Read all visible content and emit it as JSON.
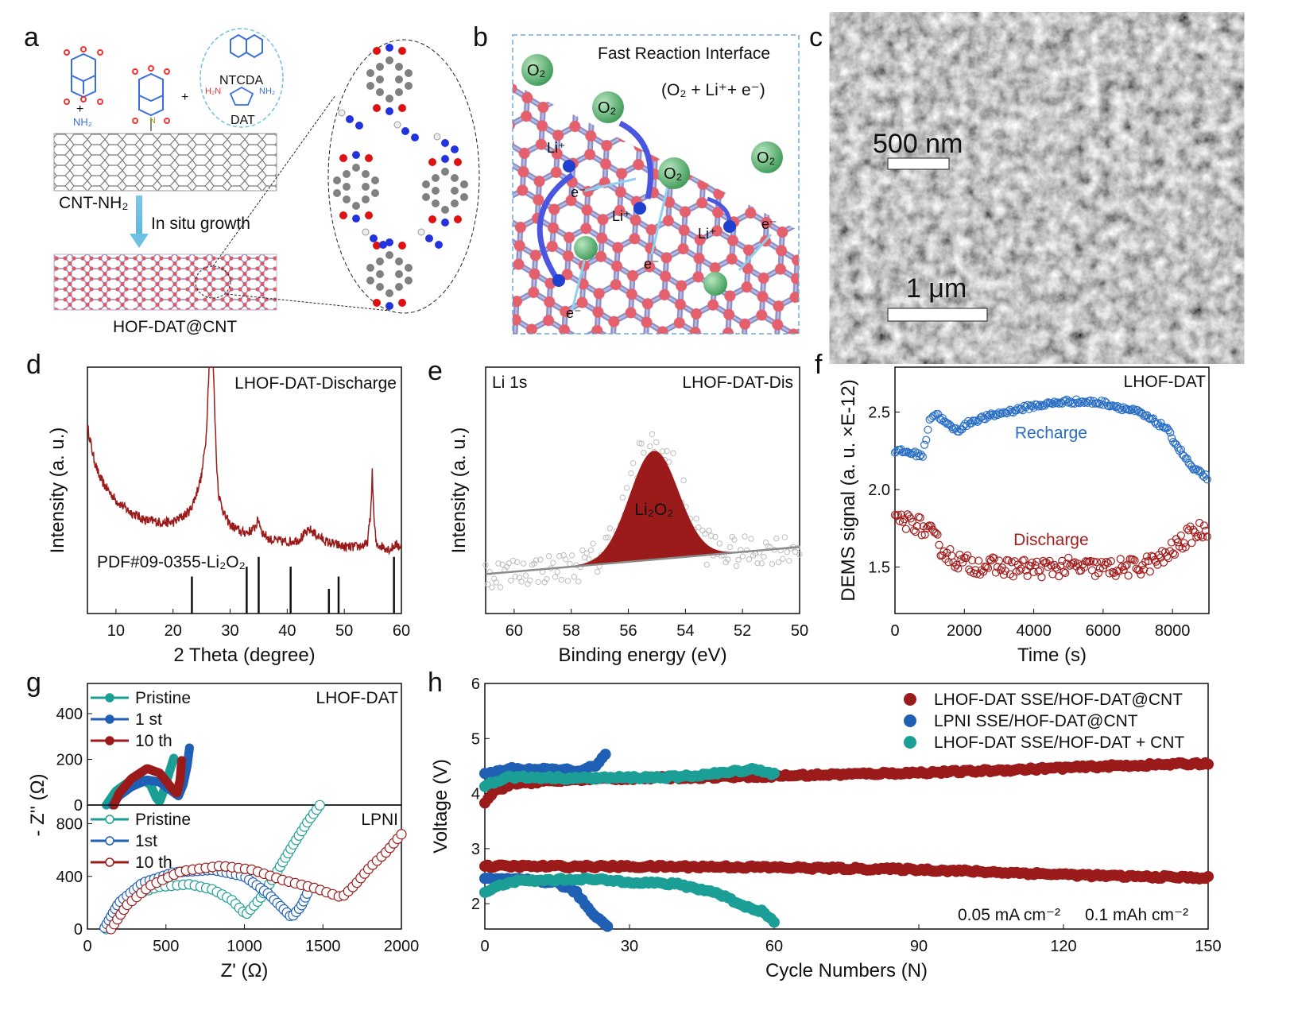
{
  "panel_letters": {
    "a": "a",
    "b": "b",
    "c": "c",
    "d": "d",
    "e": "e",
    "f": "f",
    "g": "g",
    "h": "h"
  },
  "panel_a": {
    "nh2": "NH₂",
    "plus1": "+",
    "plus2": "+",
    "ntcda": "NTCDA",
    "dat": "DAT",
    "h2n": "H₂N",
    "nh2_right": "NH₂",
    "cnt_label": "CNT-NH₂",
    "arrow_label": "In situ growth",
    "hof_label": "HOF-DAT@CNT"
  },
  "panel_b": {
    "title": "Fast Reaction Interface",
    "reaction": "(O₂ + Li⁺+ e⁻)",
    "o2": "O₂",
    "li": "Li⁺",
    "e": "e⁻"
  },
  "panel_c": {
    "inset_scale": "500 nm",
    "main_scale": "1 μm"
  },
  "chart_data": [
    {
      "panel": "d",
      "type": "line",
      "xlabel": "2 Theta (degree)",
      "ylabel": "Intensity (a. u.)",
      "xlim": [
        5,
        60
      ],
      "ylim": [
        0,
        100
      ],
      "xticks": [
        "10",
        "20",
        "30",
        "40",
        "50",
        "60"
      ],
      "annotation": "LHOF-DAT-Discharge",
      "reference_label": "PDF#09-0355-Li₂O₂",
      "series": [
        {
          "name": "LHOF-DAT-Discharge",
          "color": "#9b1b1b",
          "points": [
            [
              5,
              76
            ],
            [
              6,
              64
            ],
            [
              7,
              56
            ],
            [
              8,
              52
            ],
            [
              10,
              46
            ],
            [
              12,
              42
            ],
            [
              15,
              38
            ],
            [
              18,
              37
            ],
            [
              20,
              37
            ],
            [
              22,
              40
            ],
            [
              23,
              42
            ],
            [
              24,
              48
            ],
            [
              25,
              56
            ],
            [
              25.8,
              72
            ],
            [
              26.3,
              100
            ],
            [
              26.8,
              118
            ],
            [
              27.2,
              90
            ],
            [
              27.6,
              62
            ],
            [
              28,
              48
            ],
            [
              29,
              40
            ],
            [
              30,
              36
            ],
            [
              32,
              33
            ],
            [
              33,
              33
            ],
            [
              34,
              34
            ],
            [
              35,
              38
            ],
            [
              35.6,
              33
            ],
            [
              37,
              30
            ],
            [
              40,
              29
            ],
            [
              42,
              30
            ],
            [
              44,
              34
            ],
            [
              45,
              32
            ],
            [
              47,
              29
            ],
            [
              50,
              27
            ],
            [
              52,
              27
            ],
            [
              54,
              28
            ],
            [
              54.6,
              40
            ],
            [
              54.9,
              57
            ],
            [
              55.2,
              38
            ],
            [
              55.6,
              28
            ],
            [
              57,
              27
            ],
            [
              58,
              26
            ],
            [
              59,
              28
            ],
            [
              60,
              27
            ]
          ]
        }
      ],
      "reference_sticks": [
        [
          23.3,
          15
        ],
        [
          32.9,
          19
        ],
        [
          35.0,
          23
        ],
        [
          40.6,
          19
        ],
        [
          47.3,
          10
        ],
        [
          49.0,
          15
        ],
        [
          58.7,
          23
        ]
      ]
    },
    {
      "panel": "e",
      "type": "scatter",
      "xlabel": "Binding energy (eV)",
      "ylabel": "Intensity (a. u.)",
      "xlim": [
        61,
        50
      ],
      "ylim": [
        0,
        100
      ],
      "xticks": [
        "60",
        "58",
        "56",
        "54",
        "52",
        "50"
      ],
      "annotation_left": "Li 1s",
      "annotation_right": "LHOF-DAT-Dis",
      "peak_label": "Li₂O₂",
      "fit": {
        "center": 55.1,
        "sigma": 0.85,
        "amplitude": 44,
        "baseline_start": [
          61,
          16
        ],
        "baseline_end": [
          50,
          27
        ],
        "color": "#9b1b1b"
      },
      "raw_points_count": 150
    },
    {
      "panel": "f",
      "type": "scatter",
      "xlabel": "Time (s)",
      "ylabel": "DEMS signal (a. u. ×E-12)",
      "xlim": [
        0,
        9050
      ],
      "ylim": [
        1.2,
        2.79
      ],
      "xticks": [
        "0",
        "2000",
        "4000",
        "6000",
        "8000"
      ],
      "yticks": [
        "1.5",
        "2.0",
        "2.5"
      ],
      "annotation": "LHOF-DAT",
      "series": [
        {
          "name": "Recharge",
          "color": "#2a6fc4",
          "points": [
            [
              0,
              2.25
            ],
            [
              400,
              2.24
            ],
            [
              800,
              2.22
            ],
            [
              900,
              2.33
            ],
            [
              1000,
              2.46
            ],
            [
              1200,
              2.49
            ],
            [
              1500,
              2.42
            ],
            [
              1800,
              2.38
            ],
            [
              2200,
              2.44
            ],
            [
              3000,
              2.49
            ],
            [
              4000,
              2.54
            ],
            [
              5000,
              2.57
            ],
            [
              6000,
              2.56
            ],
            [
              7000,
              2.5
            ],
            [
              7800,
              2.4
            ],
            [
              8200,
              2.26
            ],
            [
              8600,
              2.13
            ],
            [
              9000,
              2.08
            ]
          ]
        },
        {
          "name": "Discharge",
          "color": "#a31d1d",
          "points": [
            [
              0,
              1.78
            ],
            [
              500,
              1.8
            ],
            [
              1000,
              1.72
            ],
            [
              1500,
              1.58
            ],
            [
              2000,
              1.52
            ],
            [
              3000,
              1.5
            ],
            [
              4000,
              1.49
            ],
            [
              5000,
              1.5
            ],
            [
              6000,
              1.49
            ],
            [
              7000,
              1.5
            ],
            [
              7700,
              1.55
            ],
            [
              8200,
              1.65
            ],
            [
              8600,
              1.72
            ],
            [
              9000,
              1.75
            ]
          ]
        }
      ]
    },
    {
      "panel": "g-top",
      "type": "line",
      "xlabel": "Z' (Ω)",
      "ylabel": "- Z'' (Ω)",
      "xlim": [
        0,
        2000
      ],
      "ylim": [
        0,
        532
      ],
      "yticks": [
        "0",
        "200",
        "400"
      ],
      "annotation": "LHOF-DAT",
      "series": [
        {
          "name": "Pristine",
          "color": "#1a9e96",
          "marker": "filled",
          "points": [
            [
              120,
              0
            ],
            [
              180,
              60
            ],
            [
              260,
              100
            ],
            [
              340,
              115
            ],
            [
              400,
              90
            ],
            [
              440,
              30
            ],
            [
              460,
              15
            ],
            [
              490,
              70
            ],
            [
              520,
              140
            ],
            [
              550,
              205
            ]
          ]
        },
        {
          "name": "1 st",
          "color": "#1f5fb4",
          "marker": "filled",
          "points": [
            [
              160,
              0
            ],
            [
              200,
              40
            ],
            [
              280,
              80
            ],
            [
              380,
              110
            ],
            [
              460,
              100
            ],
            [
              540,
              60
            ],
            [
              580,
              40
            ],
            [
              610,
              90
            ],
            [
              635,
              170
            ],
            [
              650,
              250
            ]
          ]
        },
        {
          "name": "10 th",
          "color": "#9b1b1b",
          "marker": "filled",
          "points": [
            [
              170,
              0
            ],
            [
              200,
              50
            ],
            [
              280,
              115
            ],
            [
              380,
              160
            ],
            [
              460,
              140
            ],
            [
              530,
              80
            ],
            [
              570,
              50
            ],
            [
              590,
              110
            ],
            [
              600,
              195
            ]
          ]
        }
      ]
    },
    {
      "panel": "g-bottom",
      "type": "line",
      "xlabel": "Z' (Ω)",
      "ylabel": "- Z'' (Ω)",
      "xlim": [
        0,
        2000
      ],
      "ylim": [
        0,
        942
      ],
      "xticks": [
        "0",
        "500",
        "1000",
        "1500",
        "2000"
      ],
      "yticks": [
        "0",
        "400",
        "800"
      ],
      "annotation": "LPNI",
      "series": [
        {
          "name": "Pristine",
          "color": "#1a9e96",
          "marker": "open",
          "points": [
            [
              120,
              0
            ],
            [
              200,
              160
            ],
            [
              300,
              260
            ],
            [
              450,
              320
            ],
            [
              650,
              340
            ],
            [
              800,
              300
            ],
            [
              920,
              220
            ],
            [
              1010,
              110
            ],
            [
              1100,
              230
            ],
            [
              1200,
              420
            ],
            [
              1300,
              620
            ],
            [
              1400,
              810
            ],
            [
              1480,
              940
            ]
          ]
        },
        {
          "name": "1st",
          "color": "#1f5fb4",
          "marker": "open",
          "points": [
            [
              110,
              10
            ],
            [
              200,
              200
            ],
            [
              350,
              350
            ],
            [
              550,
              430
            ],
            [
              800,
              450
            ],
            [
              1000,
              400
            ],
            [
              1150,
              270
            ],
            [
              1300,
              90
            ],
            [
              1360,
              170
            ],
            [
              1400,
              270
            ]
          ]
        },
        {
          "name": "10 th",
          "color": "#9b1b1b",
          "marker": "open",
          "points": [
            [
              150,
              0
            ],
            [
              250,
              180
            ],
            [
              400,
              330
            ],
            [
              600,
              440
            ],
            [
              850,
              480
            ],
            [
              1050,
              450
            ],
            [
              1250,
              370
            ],
            [
              1450,
              310
            ],
            [
              1620,
              240
            ],
            [
              1700,
              330
            ],
            [
              1800,
              470
            ],
            [
              1900,
              580
            ],
            [
              2000,
              720
            ]
          ]
        }
      ]
    },
    {
      "panel": "h",
      "type": "scatter",
      "xlabel": "Cycle Numbers (N)",
      "ylabel": "Voltage (V)",
      "xlim": [
        0,
        150
      ],
      "ylim": [
        1.54,
        6
      ],
      "xticks": [
        "0",
        "30",
        "60",
        "90",
        "120",
        "150"
      ],
      "yticks": [
        "2",
        "3",
        "4",
        "5",
        "6"
      ],
      "annotation_current": "0.05 mA cm⁻²",
      "annotation_capacity": "0.1 mAh cm⁻²",
      "series": [
        {
          "name": "LHOF-DAT SSE/HOF-DAT@CNT",
          "color": "#9b1b1b",
          "charge": [
            [
              0,
              3.85
            ],
            [
              2,
              4.05
            ],
            [
              6,
              4.18
            ],
            [
              20,
              4.26
            ],
            [
              60,
              4.32
            ],
            [
              100,
              4.4
            ],
            [
              130,
              4.5
            ],
            [
              150,
              4.55
            ]
          ],
          "discharge": [
            [
              0,
              2.68
            ],
            [
              50,
              2.67
            ],
            [
              90,
              2.62
            ],
            [
              130,
              2.5
            ],
            [
              150,
              2.47
            ]
          ]
        },
        {
          "name": "LPNI SSE/HOF-DAT@CNT",
          "color": "#1f5fb4",
          "charge": [
            [
              0,
              4.35
            ],
            [
              5,
              4.45
            ],
            [
              20,
              4.42
            ],
            [
              23,
              4.5
            ],
            [
              25,
              4.7
            ]
          ],
          "discharge": [
            [
              0,
              2.45
            ],
            [
              10,
              2.42
            ],
            [
              15,
              2.38
            ],
            [
              19,
              2.2
            ],
            [
              22,
              1.85
            ],
            [
              26,
              1.55
            ]
          ]
        },
        {
          "name": "LHOF-DAT SSE/HOF-DAT + CNT",
          "color": "#1a9e96",
          "charge": [
            [
              0,
              4.15
            ],
            [
              5,
              4.3
            ],
            [
              20,
              4.28
            ],
            [
              40,
              4.3
            ],
            [
              50,
              4.38
            ],
            [
              56,
              4.45
            ],
            [
              60,
              4.35
            ]
          ],
          "discharge": [
            [
              0,
              2.2
            ],
            [
              5,
              2.4
            ],
            [
              20,
              2.45
            ],
            [
              40,
              2.35
            ],
            [
              48,
              2.2
            ],
            [
              54,
              1.95
            ],
            [
              58,
              1.85
            ],
            [
              60,
              1.65
            ]
          ]
        }
      ]
    }
  ]
}
